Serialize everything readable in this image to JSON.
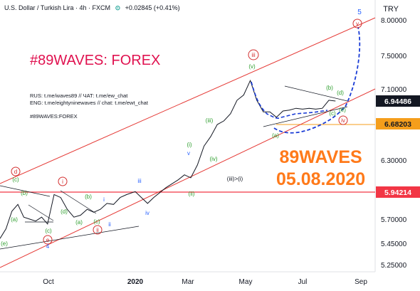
{
  "header": {
    "symbol": "U.S. Dollar / Turkish Lira · 4h · FXCM",
    "eye": "⊙",
    "change": "+0.02845 (+0.41%)"
  },
  "currency": "TRY",
  "title": "#89WAVES: FOREX",
  "contacts": [
    "RUS: t.me/waves89 // ЧАТ: t.me/ew_chat",
    "ENG: t.me/eightyninewaves // chat: t.me/ewt_chat"
  ],
  "tagline": "#89WAVES:FOREX",
  "brand": {
    "name": "89WAVES",
    "date": "05.08.2020"
  },
  "colors": {
    "channel": "#e53935",
    "wave_green": "#2e9e2e",
    "wave_blue": "#2962ff",
    "wave_red": "#d32f2f",
    "projection": "#1a3cd6",
    "price_tag": "#131722",
    "level_orange": "#f59e1b",
    "level_red": "#f23645"
  },
  "chart_data": {
    "type": "line",
    "x_ticks": [
      "Oct",
      "2020",
      "Mar",
      "May",
      "Jul",
      "Sep"
    ],
    "y_ticks": [
      "8.00000",
      "7.50000",
      "7.10000",
      "6.30000",
      "5.70000",
      "5.45000",
      "5.25000"
    ],
    "ylim": [
      5.2,
      8.2
    ],
    "price_tags": [
      {
        "value": "6.94486",
        "style": "current"
      },
      {
        "value": "6.68203",
        "style": "orange"
      },
      {
        "value": "5.94214",
        "style": "red"
      }
    ],
    "series": [
      {
        "values": [
          {
            "x": "2019-08-05",
            "y": 5.5
          },
          {
            "x": "2019-08-12",
            "y": 5.6
          },
          {
            "x": "2019-08-19",
            "y": 5.78
          },
          {
            "x": "2019-08-26",
            "y": 5.85
          },
          {
            "x": "2019-09-02",
            "y": 5.72
          },
          {
            "x": "2019-09-09",
            "y": 5.7
          },
          {
            "x": "2019-09-16",
            "y": 5.68
          },
          {
            "x": "2019-09-23",
            "y": 5.72
          },
          {
            "x": "2019-09-30",
            "y": 5.65
          },
          {
            "x": "2019-10-07",
            "y": 5.95
          },
          {
            "x": "2019-10-14",
            "y": 5.92
          },
          {
            "x": "2019-10-21",
            "y": 5.8
          },
          {
            "x": "2019-10-28",
            "y": 5.72
          },
          {
            "x": "2019-11-04",
            "y": 5.74
          },
          {
            "x": "2019-11-11",
            "y": 5.8
          },
          {
            "x": "2019-11-18",
            "y": 5.77
          },
          {
            "x": "2019-11-25",
            "y": 5.8
          },
          {
            "x": "2019-12-02",
            "y": 5.86
          },
          {
            "x": "2019-12-09",
            "y": 5.85
          },
          {
            "x": "2019-12-16",
            "y": 5.92
          },
          {
            "x": "2019-12-23",
            "y": 5.95
          },
          {
            "x": "2020-01-01",
            "y": 5.98
          },
          {
            "x": "2020-01-08",
            "y": 5.92
          },
          {
            "x": "2020-01-15",
            "y": 5.86
          },
          {
            "x": "2020-01-22",
            "y": 5.92
          },
          {
            "x": "2020-01-29",
            "y": 5.97
          },
          {
            "x": "2020-02-05",
            "y": 6.02
          },
          {
            "x": "2020-02-12",
            "y": 6.06
          },
          {
            "x": "2020-02-19",
            "y": 6.1
          },
          {
            "x": "2020-02-26",
            "y": 6.15
          },
          {
            "x": "2020-03-04",
            "y": 6.12
          },
          {
            "x": "2020-03-11",
            "y": 6.25
          },
          {
            "x": "2020-03-18",
            "y": 6.45
          },
          {
            "x": "2020-03-25",
            "y": 6.55
          },
          {
            "x": "2020-04-01",
            "y": 6.68
          },
          {
            "x": "2020-04-08",
            "y": 6.72
          },
          {
            "x": "2020-04-15",
            "y": 6.8
          },
          {
            "x": "2020-04-22",
            "y": 6.95
          },
          {
            "x": "2020-04-29",
            "y": 7.02
          },
          {
            "x": "2020-05-06",
            "y": 7.2
          },
          {
            "x": "2020-05-13",
            "y": 6.95
          },
          {
            "x": "2020-05-20",
            "y": 6.82
          },
          {
            "x": "2020-05-27",
            "y": 6.82
          },
          {
            "x": "2020-06-03",
            "y": 6.76
          },
          {
            "x": "2020-06-10",
            "y": 6.83
          },
          {
            "x": "2020-06-17",
            "y": 6.84
          },
          {
            "x": "2020-06-24",
            "y": 6.86
          },
          {
            "x": "2020-07-01",
            "y": 6.85
          },
          {
            "x": "2020-07-08",
            "y": 6.86
          },
          {
            "x": "2020-07-15",
            "y": 6.85
          },
          {
            "x": "2020-07-22",
            "y": 6.86
          },
          {
            "x": "2020-07-29",
            "y": 6.95
          },
          {
            "x": "2020-08-05",
            "y": 6.94
          }
        ]
      }
    ]
  }
}
